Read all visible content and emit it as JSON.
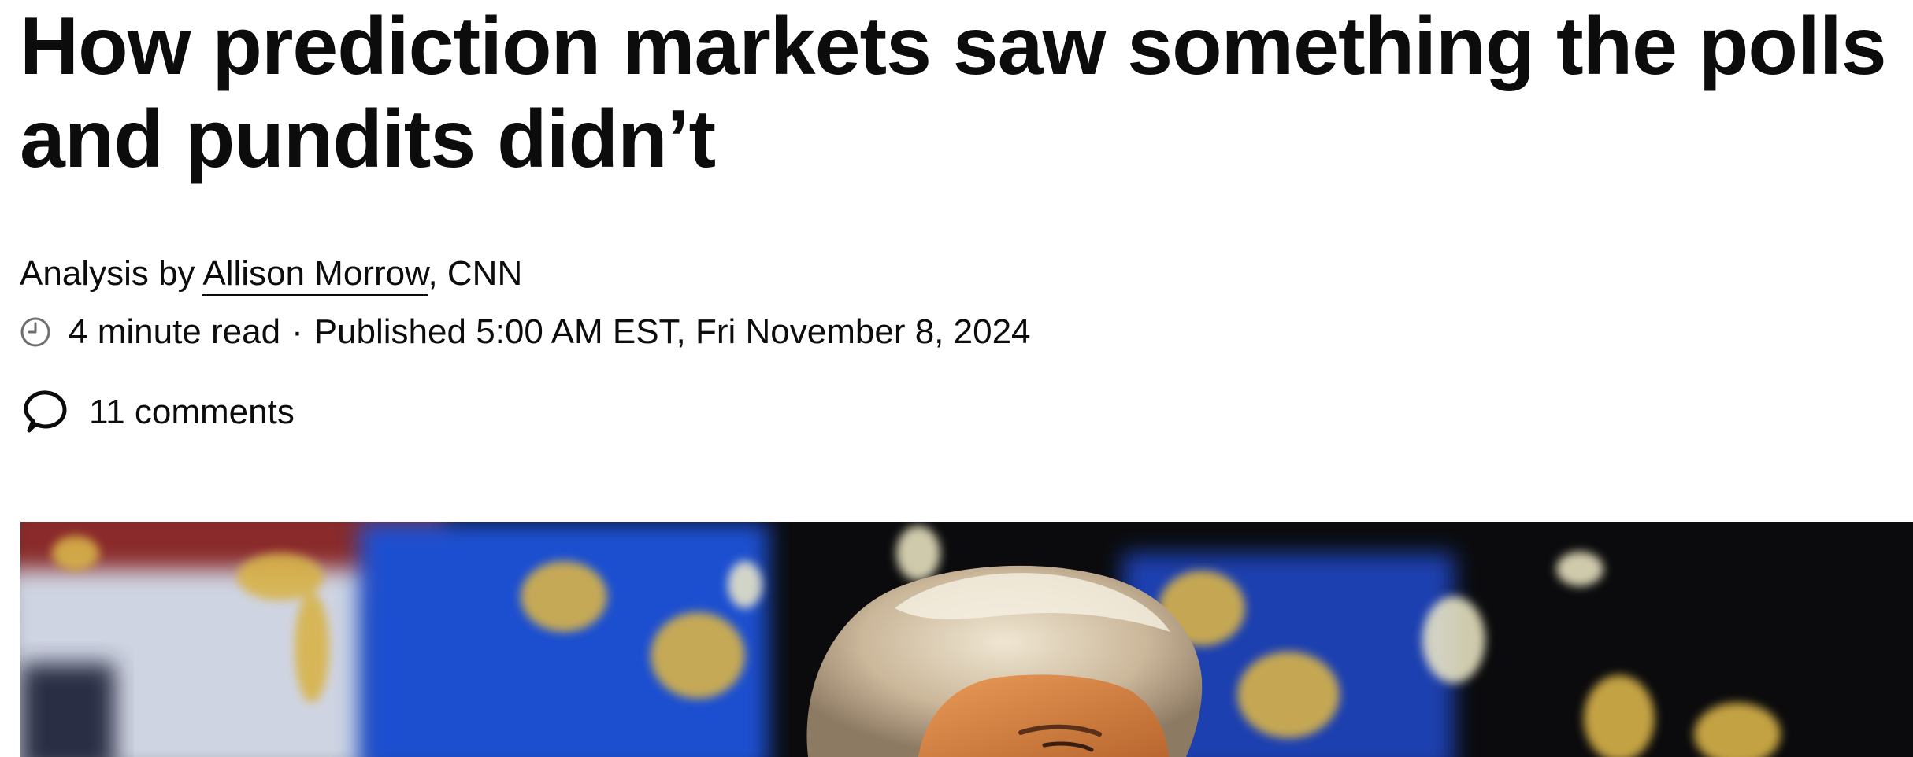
{
  "article": {
    "headline": "How prediction markets saw something the polls and pundits didn’t",
    "byline": {
      "prefix": "Analysis by ",
      "author": "Allison Morrow",
      "suffix": ", CNN"
    },
    "read_time": "4 minute read",
    "separator": "·",
    "published": "Published 5:00 AM EST, Fri November 8, 2024",
    "comments": "11 comments"
  },
  "icons": {
    "clock": "clock-icon",
    "comments": "speech-bubble-icon"
  },
  "colors": {
    "text": "#0c0c0c",
    "icon_gray": "#6e6e6e",
    "hero_background": "#0b0b0d",
    "hero_blue": "#1f4fd0"
  }
}
